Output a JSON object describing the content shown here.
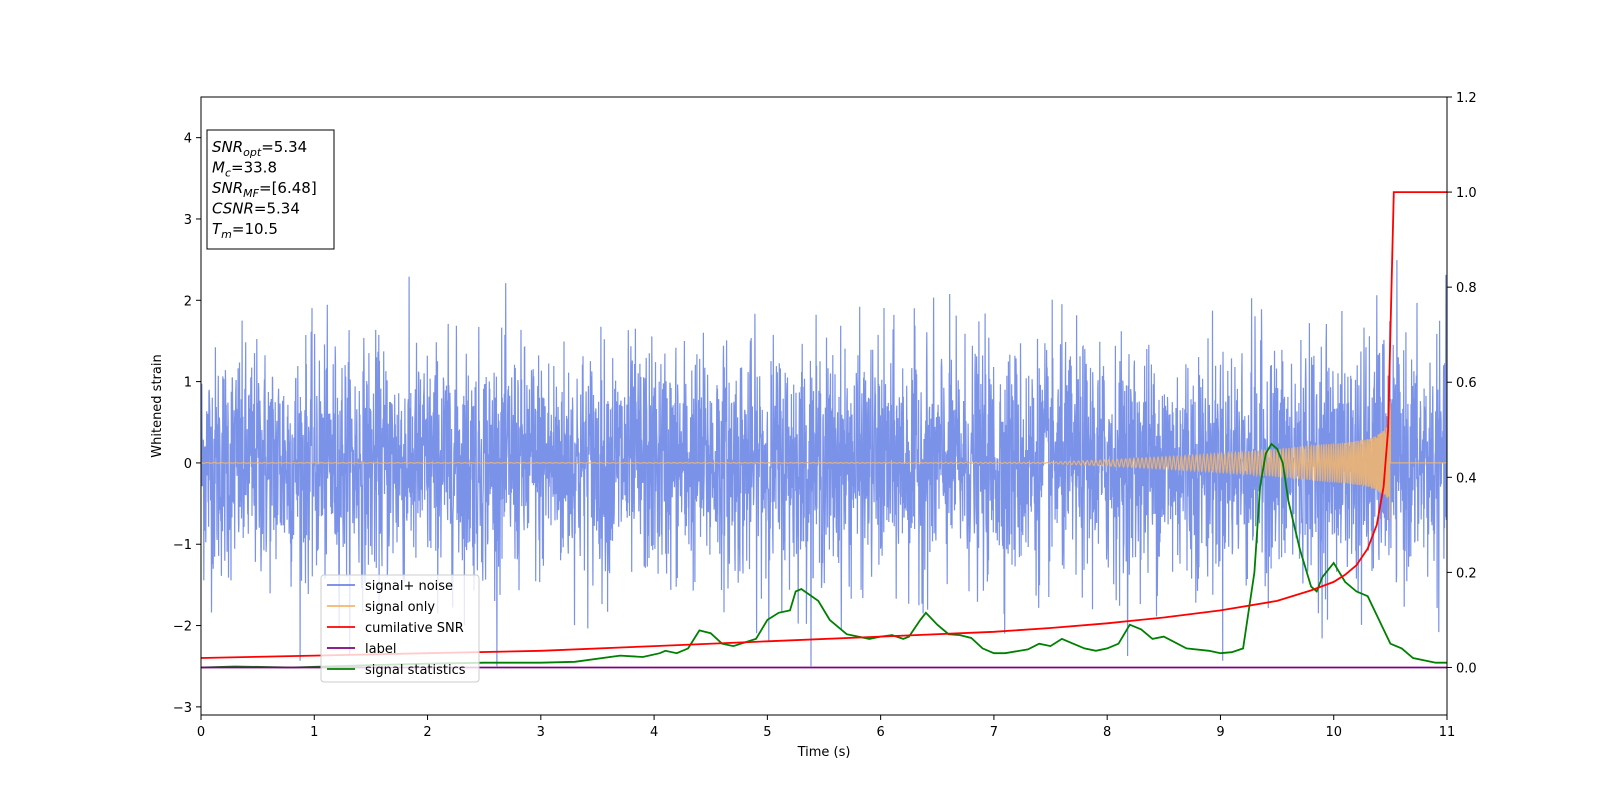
{
  "chart_data": {
    "type": "line",
    "xlabel": "Time (s)",
    "ylabel": "Whitened strain",
    "xlim": [
      0,
      11
    ],
    "ylim_left": [
      -3.1,
      4.5
    ],
    "ylim_right": [
      -0.1,
      1.2
    ],
    "x_ticks": [
      "0",
      "1",
      "2",
      "3",
      "4",
      "5",
      "6",
      "7",
      "8",
      "9",
      "10",
      "11"
    ],
    "y_ticks_left": [
      "−3",
      "−2",
      "−1",
      "0",
      "1",
      "2",
      "3",
      "4"
    ],
    "y_ticks_right": [
      "0.0",
      "0.2",
      "0.4",
      "0.6",
      "0.8",
      "1.0",
      "1.2"
    ],
    "annotation": [
      {
        "main": "SNR",
        "sub": "opt",
        "rest": "=5.34"
      },
      {
        "main": "M",
        "sub": "c",
        "rest": "=33.8"
      },
      {
        "main": "SNR",
        "sub": "MF",
        "rest": "=[6.48]"
      },
      {
        "main": "CSNR",
        "sub": "",
        "rest": "=5.34"
      },
      {
        "main": "T",
        "sub": "m",
        "rest": "=10.5"
      }
    ],
    "legend_position": "lower-left",
    "series": [
      {
        "name": "signal+ noise",
        "color": "#6b86e6",
        "axis": "left",
        "noise_amplitude": 0.7,
        "peak_range": [
          -2.5,
          2.55
        ]
      },
      {
        "name": "signal only",
        "color": "#f5b66a",
        "axis": "left",
        "merger_time": 10.5,
        "peak_amplitude": 0.8
      },
      {
        "name": "cumilative SNR",
        "color": "#ff0000",
        "axis": "right",
        "points": [
          [
            0,
            0.02
          ],
          [
            1,
            0.025
          ],
          [
            2,
            0.03
          ],
          [
            3,
            0.035
          ],
          [
            4,
            0.045
          ],
          [
            5,
            0.055
          ],
          [
            6,
            0.065
          ],
          [
            7,
            0.075
          ],
          [
            7.5,
            0.083
          ],
          [
            8,
            0.093
          ],
          [
            8.5,
            0.105
          ],
          [
            9,
            0.12
          ],
          [
            9.5,
            0.14
          ],
          [
            9.8,
            0.162
          ],
          [
            10,
            0.18
          ],
          [
            10.1,
            0.195
          ],
          [
            10.2,
            0.215
          ],
          [
            10.3,
            0.25
          ],
          [
            10.38,
            0.3
          ],
          [
            10.44,
            0.38
          ],
          [
            10.48,
            0.5
          ],
          [
            10.51,
            0.8
          ],
          [
            10.53,
            1.0
          ],
          [
            11,
            1.0
          ]
        ]
      },
      {
        "name": "label",
        "color": "#800080",
        "axis": "right",
        "points": [
          [
            0,
            0.0
          ],
          [
            11,
            0.0
          ]
        ]
      },
      {
        "name": "signal statistics",
        "color": "#008000",
        "axis": "right",
        "points": [
          [
            0,
            0.0
          ],
          [
            0.3,
            0.002
          ],
          [
            0.8,
            0.0
          ],
          [
            1.5,
            0.005
          ],
          [
            2,
            0.008
          ],
          [
            2.5,
            0.01
          ],
          [
            3,
            0.01
          ],
          [
            3.3,
            0.012
          ],
          [
            3.7,
            0.025
          ],
          [
            3.9,
            0.022
          ],
          [
            4.05,
            0.03
          ],
          [
            4.1,
            0.035
          ],
          [
            4.2,
            0.03
          ],
          [
            4.3,
            0.04
          ],
          [
            4.4,
            0.078
          ],
          [
            4.5,
            0.072
          ],
          [
            4.6,
            0.05
          ],
          [
            4.7,
            0.045
          ],
          [
            4.9,
            0.06
          ],
          [
            5.0,
            0.1
          ],
          [
            5.1,
            0.115
          ],
          [
            5.2,
            0.12
          ],
          [
            5.25,
            0.16
          ],
          [
            5.3,
            0.165
          ],
          [
            5.45,
            0.14
          ],
          [
            5.55,
            0.1
          ],
          [
            5.7,
            0.07
          ],
          [
            5.9,
            0.06
          ],
          [
            6.0,
            0.065
          ],
          [
            6.1,
            0.068
          ],
          [
            6.2,
            0.06
          ],
          [
            6.25,
            0.065
          ],
          [
            6.35,
            0.1
          ],
          [
            6.4,
            0.115
          ],
          [
            6.5,
            0.09
          ],
          [
            6.6,
            0.07
          ],
          [
            6.7,
            0.068
          ],
          [
            6.8,
            0.062
          ],
          [
            6.9,
            0.04
          ],
          [
            7.0,
            0.03
          ],
          [
            7.1,
            0.03
          ],
          [
            7.3,
            0.038
          ],
          [
            7.4,
            0.05
          ],
          [
            7.5,
            0.045
          ],
          [
            7.6,
            0.06
          ],
          [
            7.7,
            0.05
          ],
          [
            7.8,
            0.04
          ],
          [
            7.9,
            0.035
          ],
          [
            8.0,
            0.04
          ],
          [
            8.1,
            0.05
          ],
          [
            8.2,
            0.09
          ],
          [
            8.3,
            0.08
          ],
          [
            8.4,
            0.06
          ],
          [
            8.5,
            0.065
          ],
          [
            8.7,
            0.04
          ],
          [
            8.9,
            0.035
          ],
          [
            9.0,
            0.03
          ],
          [
            9.1,
            0.032
          ],
          [
            9.2,
            0.04
          ],
          [
            9.3,
            0.2
          ],
          [
            9.35,
            0.38
          ],
          [
            9.4,
            0.45
          ],
          [
            9.45,
            0.47
          ],
          [
            9.5,
            0.46
          ],
          [
            9.55,
            0.43
          ],
          [
            9.6,
            0.35
          ],
          [
            9.7,
            0.25
          ],
          [
            9.8,
            0.17
          ],
          [
            9.85,
            0.16
          ],
          [
            9.9,
            0.19
          ],
          [
            10.0,
            0.22
          ],
          [
            10.1,
            0.18
          ],
          [
            10.2,
            0.16
          ],
          [
            10.3,
            0.15
          ],
          [
            10.4,
            0.1
          ],
          [
            10.5,
            0.05
          ],
          [
            10.6,
            0.04
          ],
          [
            10.7,
            0.02
          ],
          [
            10.9,
            0.01
          ],
          [
            11,
            0.01
          ]
        ]
      }
    ]
  }
}
